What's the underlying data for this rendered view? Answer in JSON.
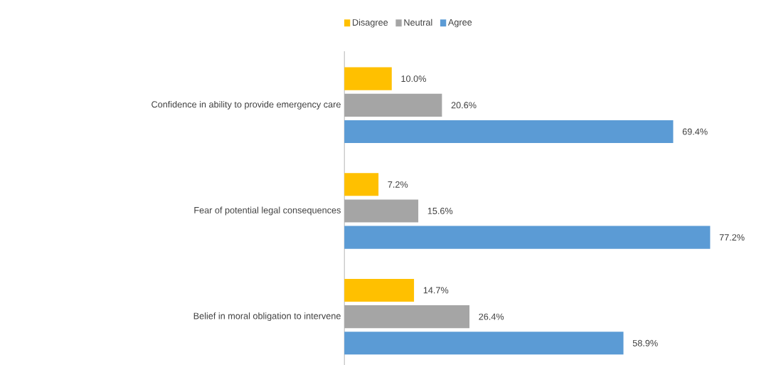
{
  "chart_data": {
    "type": "bar",
    "orientation": "horizontal",
    "legend": "top",
    "data_labels": true,
    "categories": [
      "Confidence in ability to provide emergency care",
      "Fear of potential legal consequences",
      "Belief in moral obligation to intervene"
    ],
    "series": [
      {
        "name": "Disagree",
        "color": "#ffc000",
        "values": [
          10.0,
          7.2,
          14.7
        ],
        "value_labels": [
          "10.0%",
          "7.2%",
          "14.7%"
        ]
      },
      {
        "name": "Neutral",
        "color": "#a5a5a5",
        "values": [
          20.6,
          15.6,
          26.4
        ],
        "value_labels": [
          "20.6%",
          "15.6%",
          "26.4%"
        ]
      },
      {
        "name": "Agree",
        "color": "#5b9bd5",
        "values": [
          69.4,
          77.2,
          58.9
        ],
        "value_labels": [
          "69.4%",
          "77.2%",
          "58.9%"
        ]
      }
    ]
  }
}
